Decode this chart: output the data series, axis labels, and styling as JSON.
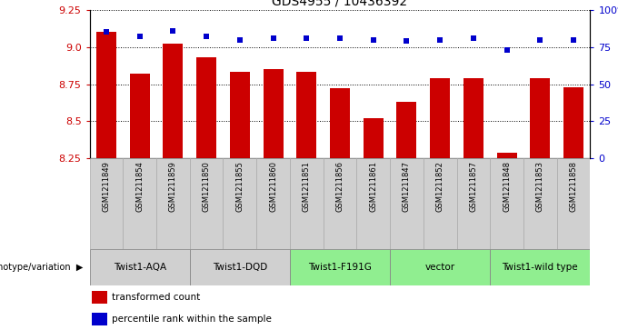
{
  "title": "GDS4955 / 10436392",
  "samples": [
    "GSM1211849",
    "GSM1211854",
    "GSM1211859",
    "GSM1211850",
    "GSM1211855",
    "GSM1211860",
    "GSM1211851",
    "GSM1211856",
    "GSM1211861",
    "GSM1211847",
    "GSM1211852",
    "GSM1211857",
    "GSM1211848",
    "GSM1211853",
    "GSM1211858"
  ],
  "bar_values": [
    9.1,
    8.82,
    9.02,
    8.93,
    8.83,
    8.85,
    8.83,
    8.72,
    8.52,
    8.63,
    8.79,
    8.79,
    8.29,
    8.79,
    8.73
  ],
  "percentile_values": [
    85,
    82,
    86,
    82,
    80,
    81,
    81,
    81,
    80,
    79,
    80,
    81,
    73,
    80,
    80
  ],
  "groups": [
    {
      "label": "Twist1-AQA",
      "indices": [
        0,
        1,
        2
      ],
      "color": "#d0d0d0"
    },
    {
      "label": "Twist1-DQD",
      "indices": [
        3,
        4,
        5
      ],
      "color": "#d0d0d0"
    },
    {
      "label": "Twist1-F191G",
      "indices": [
        6,
        7,
        8
      ],
      "color": "#90ee90"
    },
    {
      "label": "vector",
      "indices": [
        9,
        10,
        11
      ],
      "color": "#90ee90"
    },
    {
      "label": "Twist1-wild type",
      "indices": [
        12,
        13,
        14
      ],
      "color": "#90ee90"
    }
  ],
  "ylim_left": [
    8.25,
    9.25
  ],
  "ylim_right": [
    0,
    100
  ],
  "yticks_left": [
    8.25,
    8.5,
    8.75,
    9.0,
    9.25
  ],
  "yticks_right": [
    0,
    25,
    50,
    75,
    100
  ],
  "bar_color": "#cc0000",
  "dot_color": "#0000cc",
  "sample_box_color": "#d0d0d0",
  "background_color": "#ffffff",
  "legend_bar_label": "transformed count",
  "legend_dot_label": "percentile rank within the sample",
  "genotype_label": "genotype/variation"
}
